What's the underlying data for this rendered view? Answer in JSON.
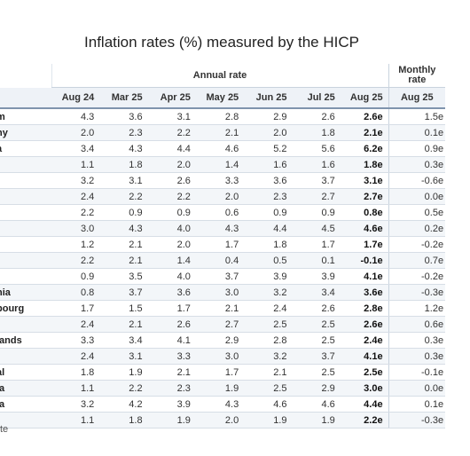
{
  "title": "Inflation rates (%) measured by the HICP",
  "groups": {
    "annual": "Annual rate",
    "monthly_line1": "Monthly",
    "monthly_line2": "rate"
  },
  "columns": [
    "Aug 24",
    "Mar 25",
    "Apr 25",
    "May 25",
    "Jun 25",
    "Jul 25",
    "Aug 25"
  ],
  "monthly_column": "Aug 25",
  "rows": [
    {
      "name": "m",
      "values": [
        "4.3",
        "3.6",
        "3.1",
        "2.8",
        "2.9",
        "2.6",
        "2.6e"
      ],
      "monthly": "1.5e"
    },
    {
      "name": "ny",
      "values": [
        "2.0",
        "2.3",
        "2.2",
        "2.1",
        "2.0",
        "1.8",
        "2.1e"
      ],
      "monthly": "0.1e"
    },
    {
      "name": "a",
      "values": [
        "3.4",
        "4.3",
        "4.4",
        "4.6",
        "5.2",
        "5.6",
        "6.2e"
      ],
      "monthly": "0.9e"
    },
    {
      "name": "",
      "values": [
        "1.1",
        "1.8",
        "2.0",
        "1.4",
        "1.6",
        "1.6",
        "1.8e"
      ],
      "monthly": "0.3e"
    },
    {
      "name": "",
      "values": [
        "3.2",
        "3.1",
        "2.6",
        "3.3",
        "3.6",
        "3.7",
        "3.1e"
      ],
      "monthly": "-0.6e"
    },
    {
      "name": "",
      "values": [
        "2.4",
        "2.2",
        "2.2",
        "2.0",
        "2.3",
        "2.7",
        "2.7e"
      ],
      "monthly": "0.0e"
    },
    {
      "name": "",
      "values": [
        "2.2",
        "0.9",
        "0.9",
        "0.6",
        "0.9",
        "0.9",
        "0.8e"
      ],
      "monthly": "0.5e"
    },
    {
      "name": "",
      "values": [
        "3.0",
        "4.3",
        "4.0",
        "4.3",
        "4.4",
        "4.5",
        "4.6e"
      ],
      "monthly": "0.2e"
    },
    {
      "name": "",
      "values": [
        "1.2",
        "2.1",
        "2.0",
        "1.7",
        "1.8",
        "1.7",
        "1.7e"
      ],
      "monthly": "-0.2e"
    },
    {
      "name": "",
      "values": [
        "2.2",
        "2.1",
        "1.4",
        "0.4",
        "0.5",
        "0.1",
        "-0.1e"
      ],
      "monthly": "0.7e"
    },
    {
      "name": "",
      "values": [
        "0.9",
        "3.5",
        "4.0",
        "3.7",
        "3.9",
        "3.9",
        "4.1e"
      ],
      "monthly": "-0.2e"
    },
    {
      "name": "nia",
      "values": [
        "0.8",
        "3.7",
        "3.6",
        "3.0",
        "3.2",
        "3.4",
        "3.6e"
      ],
      "monthly": "-0.3e"
    },
    {
      "name": "bourg",
      "values": [
        "1.7",
        "1.5",
        "1.7",
        "2.1",
        "2.4",
        "2.6",
        "2.8e"
      ],
      "monthly": "1.2e"
    },
    {
      "name": "",
      "values": [
        "2.4",
        "2.1",
        "2.6",
        "2.7",
        "2.5",
        "2.5",
        "2.6e"
      ],
      "monthly": "0.6e"
    },
    {
      "name": "lands",
      "values": [
        "3.3",
        "3.4",
        "4.1",
        "2.9",
        "2.8",
        "2.5",
        "2.4e"
      ],
      "monthly": "0.3e"
    },
    {
      "name": "",
      "values": [
        "2.4",
        "3.1",
        "3.3",
        "3.0",
        "3.2",
        "3.7",
        "4.1e"
      ],
      "monthly": "0.3e"
    },
    {
      "name": "al",
      "values": [
        "1.8",
        "1.9",
        "2.1",
        "1.7",
        "2.1",
        "2.5",
        "2.5e"
      ],
      "monthly": "-0.1e"
    },
    {
      "name": "ia",
      "values": [
        "1.1",
        "2.2",
        "2.3",
        "1.9",
        "2.5",
        "2.9",
        "3.0e"
      ],
      "monthly": "0.0e"
    },
    {
      "name": "ia",
      "values": [
        "3.2",
        "4.2",
        "3.9",
        "4.3",
        "4.6",
        "4.6",
        "4.4e"
      ],
      "monthly": "0.1e"
    },
    {
      "name": "l",
      "values": [
        "1.1",
        "1.8",
        "1.9",
        "2.0",
        "1.9",
        "1.9",
        "2.2e"
      ],
      "monthly": "-0.3e"
    }
  ],
  "footnote": "te"
}
